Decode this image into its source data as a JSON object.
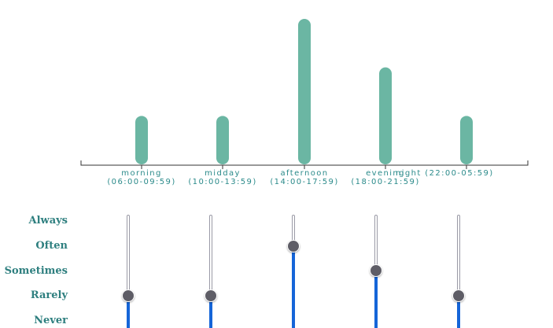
{
  "chart_data": {
    "type": "bar",
    "categories": [
      [
        "morning",
        "(06:00-09:59)"
      ],
      [
        "midday",
        "(10:00-13:59)"
      ],
      [
        "afternoon",
        "(14:00-17:59)"
      ],
      [
        "evening",
        "(18:00-21:59)"
      ],
      [
        "night (22:00-05:59)"
      ]
    ],
    "values": [
      1,
      1,
      3,
      2,
      1
    ],
    "ylim": [
      0,
      3
    ],
    "bar_color": "#6bb6a3",
    "axis_color": "#333333"
  },
  "sliders": {
    "levels": [
      "Never",
      "Rarely",
      "Sometimes",
      "Often",
      "Always"
    ],
    "values": [
      1,
      1,
      3,
      2,
      1
    ],
    "fill_color": "#1565d8",
    "thumb_color": "#5e5d66"
  }
}
